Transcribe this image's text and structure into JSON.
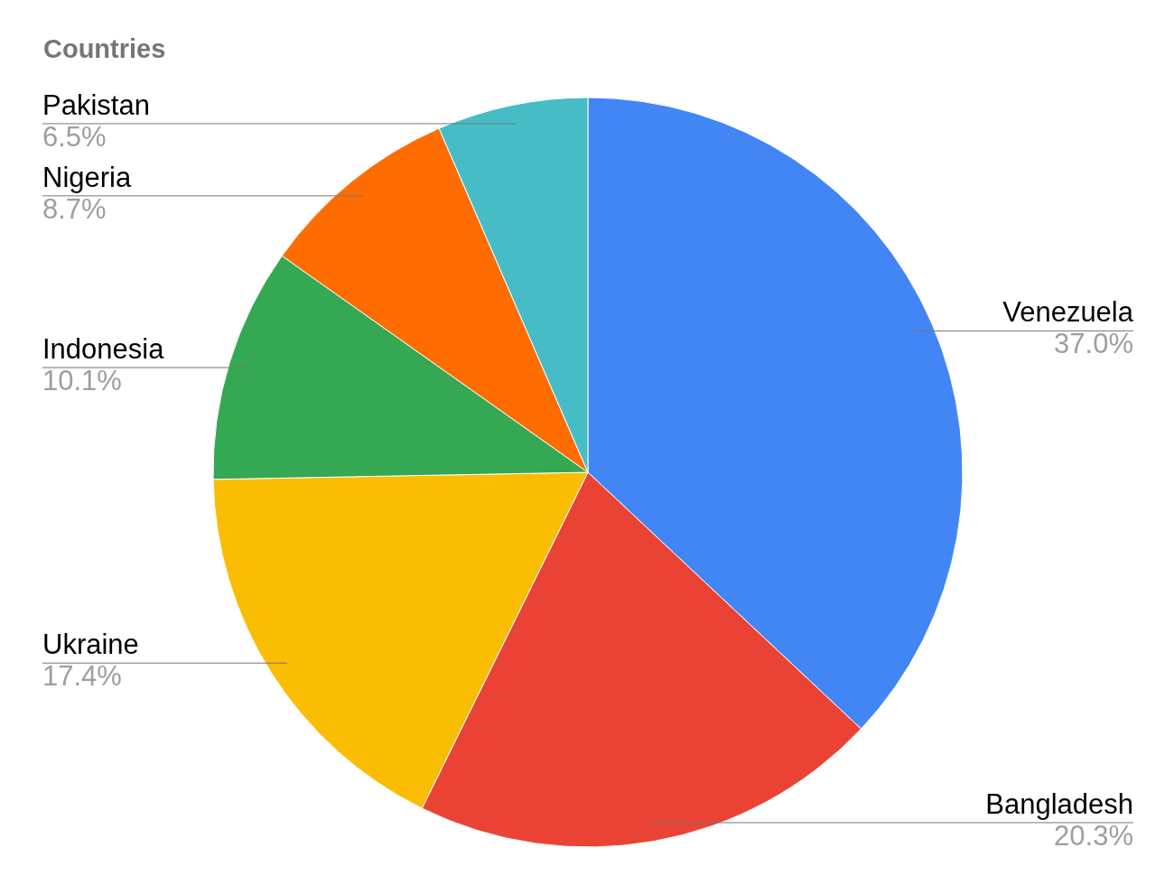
{
  "chart_data": {
    "type": "pie",
    "title": "Countries",
    "categories": [
      "Venezuela",
      "Bangladesh",
      "Ukraine",
      "Indonesia",
      "Nigeria",
      "Pakistan"
    ],
    "values": [
      37.0,
      20.3,
      17.4,
      10.1,
      8.7,
      6.5
    ],
    "value_labels": [
      "37.0%",
      "20.3%",
      "17.4%",
      "10.1%",
      "8.7%",
      "6.5%"
    ],
    "colors": [
      "#4285f4",
      "#ea4335",
      "#fbbc04",
      "#34a853",
      "#ff6d01",
      "#46bdc6"
    ]
  }
}
